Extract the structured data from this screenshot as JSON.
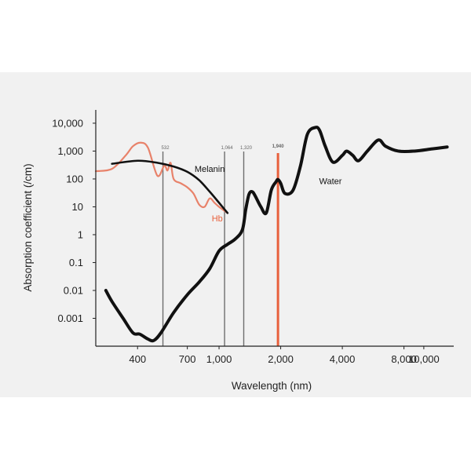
{
  "chart_data": {
    "type": "line",
    "xlabel": "Wavelength (nm)",
    "ylabel": "Absorption coefficient (/cm)",
    "x_scale": "log",
    "y_scale": "log",
    "xlim": [
      250,
      14000
    ],
    "ylim": [
      0.0001,
      30000
    ],
    "x_ticks": [
      {
        "value": 400,
        "label": "400"
      },
      {
        "value": 700,
        "label": "700"
      },
      {
        "value": 1000,
        "label": "1,000"
      },
      {
        "value": 2000,
        "label": "2,000"
      },
      {
        "value": 4000,
        "label": "4,000"
      },
      {
        "value": 8000,
        "label": "8,000"
      },
      {
        "value": 10000,
        "label": "10,000"
      }
    ],
    "y_ticks": [
      {
        "value": 10000,
        "label": "10,000"
      },
      {
        "value": 1000,
        "label": "1,000"
      },
      {
        "value": 100,
        "label": "100"
      },
      {
        "value": 10,
        "label": "10"
      },
      {
        "value": 1,
        "label": "1"
      },
      {
        "value": 0.1,
        "label": "0.1"
      },
      {
        "value": 0.01,
        "label": "0.01"
      },
      {
        "value": 0.001,
        "label": "0.001"
      }
    ],
    "series": [
      {
        "name": "Water",
        "color": "#111111",
        "points": [
          [
            280,
            0.01
          ],
          [
            300,
            0.004
          ],
          [
            340,
            0.001
          ],
          [
            380,
            0.0003
          ],
          [
            410,
            0.00027
          ],
          [
            450,
            0.00018
          ],
          [
            480,
            0.00016
          ],
          [
            520,
            0.0003
          ],
          [
            600,
            0.0016
          ],
          [
            700,
            0.007
          ],
          [
            800,
            0.02
          ],
          [
            900,
            0.06
          ],
          [
            1000,
            0.26
          ],
          [
            1100,
            0.45
          ],
          [
            1200,
            0.7
          ],
          [
            1300,
            1.5
          ],
          [
            1350,
            8
          ],
          [
            1400,
            28
          ],
          [
            1450,
            35
          ],
          [
            1500,
            25
          ],
          [
            1600,
            10
          ],
          [
            1700,
            6
          ],
          [
            1800,
            40
          ],
          [
            1900,
            80
          ],
          [
            1940,
            95
          ],
          [
            2000,
            70
          ],
          [
            2100,
            30
          ],
          [
            2300,
            40
          ],
          [
            2500,
            300
          ],
          [
            2700,
            4000
          ],
          [
            2950,
            7000
          ],
          [
            3100,
            5500
          ],
          [
            3300,
            1500
          ],
          [
            3600,
            400
          ],
          [
            4000,
            700
          ],
          [
            4200,
            1000
          ],
          [
            4500,
            700
          ],
          [
            4800,
            450
          ],
          [
            5300,
            1000
          ],
          [
            6000,
            2500
          ],
          [
            6500,
            1500
          ],
          [
            7500,
            1000
          ],
          [
            9000,
            1000
          ],
          [
            11000,
            1200
          ],
          [
            13000,
            1400
          ]
        ]
      },
      {
        "name": "Melanin",
        "color": "#111111",
        "points": [
          [
            300,
            350
          ],
          [
            400,
            450
          ],
          [
            500,
            380
          ],
          [
            600,
            280
          ],
          [
            700,
            180
          ],
          [
            800,
            90
          ],
          [
            900,
            35
          ],
          [
            1000,
            14
          ],
          [
            1100,
            6
          ]
        ]
      },
      {
        "name": "Hb",
        "color": "#e8826a",
        "points": [
          [
            250,
            190
          ],
          [
            300,
            230
          ],
          [
            350,
            700
          ],
          [
            380,
            1500
          ],
          [
            415,
            2000
          ],
          [
            450,
            1300
          ],
          [
            500,
            130
          ],
          [
            540,
            300
          ],
          [
            560,
            200
          ],
          [
            580,
            380
          ],
          [
            600,
            100
          ],
          [
            650,
            70
          ],
          [
            700,
            50
          ],
          [
            750,
            30
          ],
          [
            800,
            12
          ],
          [
            850,
            10
          ],
          [
            900,
            20
          ],
          [
            950,
            14
          ],
          [
            1000,
            10
          ],
          [
            1100,
            6
          ]
        ]
      }
    ],
    "vlines": [
      {
        "x": 532,
        "label": "532",
        "color": "#6e6e6e"
      },
      {
        "x": 1064,
        "label": "1,064",
        "color": "#6e6e6e"
      },
      {
        "x": 1320,
        "label": "1,320",
        "color": "#6e6e6e"
      },
      {
        "x": 1940,
        "label": "1,940",
        "color": "#e8603c"
      }
    ],
    "annotations": [
      {
        "text": "Melanin",
        "x": 900,
        "y": 180,
        "color": "#111111"
      },
      {
        "text": "Hb",
        "x": 980,
        "y": 3.0,
        "color": "#e8603c"
      },
      {
        "text": "Water",
        "x": 3500,
        "y": 65,
        "color": "#111111"
      }
    ]
  }
}
